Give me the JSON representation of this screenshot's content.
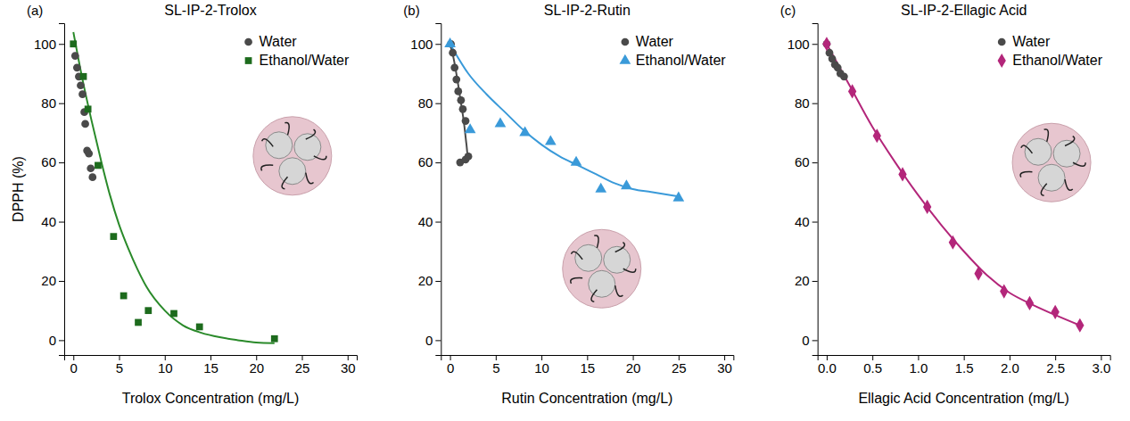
{
  "chart_data": [
    {
      "type": "scatter",
      "title": "SL-IP-2-Trolox",
      "panel_label": "(a)",
      "x_label": "Trolox Concentration (mg/L)",
      "y_label": "DPPH (%)",
      "xlim": [
        -1,
        31
      ],
      "xticks": [
        0,
        5,
        10,
        15,
        20,
        25,
        30
      ],
      "ylim": [
        -5,
        107
      ],
      "yticks": [
        0,
        20,
        40,
        60,
        80,
        100
      ],
      "grid": false,
      "legend": "top-right",
      "series": [
        {
          "name": "Water",
          "color": "#4a4a4a",
          "marker": "circle",
          "x": [
            0.2,
            0.4,
            0.6,
            0.8,
            1.0,
            1.2,
            1.3,
            1.5,
            1.7,
            1.9,
            2.1
          ],
          "values": [
            96,
            92,
            89,
            86,
            83,
            77,
            73,
            64,
            63,
            58,
            55
          ]
        },
        {
          "name": "Ethanol/Water",
          "color": "#1d6b1d",
          "marker": "square",
          "x": [
            0,
            1.1,
            1.6,
            2.7,
            4.4,
            5.5,
            7.1,
            8.2,
            11,
            13.8,
            22
          ],
          "values": [
            100,
            89,
            78,
            59,
            35,
            15,
            6,
            10,
            9,
            4.5,
            0.5
          ]
        },
        {
          "type": "line",
          "color": "#2a8a2a",
          "line_style": "solid",
          "x": [
            0,
            1,
            2,
            3,
            4,
            5,
            6,
            7,
            8,
            10,
            12,
            14,
            16,
            18,
            20,
            22
          ],
          "values": [
            104,
            88,
            74,
            61,
            49,
            39,
            31,
            24,
            18,
            10,
            5,
            2.5,
            1,
            0,
            -0.8,
            -1
          ]
        }
      ]
    },
    {
      "type": "scatter",
      "title": "SL-IP-2-Rutin",
      "panel_label": "(b)",
      "x_label": "Rutin Concentration (mg/L)",
      "xlim": [
        -1,
        31
      ],
      "xticks": [
        0,
        5,
        10,
        15,
        20,
        25,
        30
      ],
      "ylim": [
        -5,
        107
      ],
      "yticks": [
        0,
        20,
        40,
        60,
        80,
        100
      ],
      "grid": false,
      "legend": "top-right",
      "series": [
        {
          "name": "Water",
          "color": "#4a4a4a",
          "marker": "circle",
          "x": [
            0.1,
            0.3,
            0.5,
            0.7,
            0.9,
            1.2,
            1.4,
            1.7,
            1.1,
            1.7,
            2.0
          ],
          "values": [
            100,
            97,
            92,
            88,
            84,
            81,
            78,
            74,
            60,
            61,
            62
          ]
        },
        {
          "name": "Ethanol/Water",
          "color": "#3a9ad9",
          "marker": "triangle",
          "x": [
            0,
            2.2,
            5.5,
            8.2,
            11,
            13.8,
            16.5,
            19.3,
            25
          ],
          "values": [
            100,
            71,
            73,
            70,
            67,
            60,
            51,
            52,
            48
          ]
        },
        {
          "type": "line",
          "color": "#4a4a4a",
          "line_style": "solid",
          "x": [
            0,
            0.4,
            0.8,
            1.2,
            1.5,
            1.8,
            2.0,
            2.1
          ],
          "values": [
            100,
            95,
            88,
            80,
            74,
            66,
            61,
            62
          ]
        },
        {
          "type": "line",
          "color": "#3a9ad9",
          "line_style": "solid",
          "x": [
            0,
            2,
            4,
            6,
            8,
            10,
            12,
            14,
            16,
            18,
            20,
            22,
            25
          ],
          "values": [
            100,
            90,
            83,
            77,
            71,
            66,
            62,
            59,
            56,
            53,
            51,
            50,
            48.5
          ]
        }
      ]
    },
    {
      "type": "scatter",
      "title": "SL-IP-2-Ellagic Acid",
      "panel_label": "(c)",
      "x_label": "Ellagic Acid Concentration (mg/L)",
      "xlim": [
        -0.1,
        3.1
      ],
      "xticks": [
        {
          "value": 0,
          "label": "0.0"
        },
        {
          "value": 0.5,
          "label": "0.5"
        },
        {
          "value": 1,
          "label": "1.0"
        },
        {
          "value": 1.5,
          "label": "1.5"
        },
        {
          "value": 2,
          "label": "2.0"
        },
        {
          "value": 2.5,
          "label": "2.5"
        },
        {
          "value": 3,
          "label": "3.0"
        }
      ],
      "ylim": [
        -5,
        107
      ],
      "yticks": [
        0,
        20,
        40,
        60,
        80,
        100
      ],
      "grid": false,
      "legend": "top-right",
      "series": [
        {
          "name": "Water",
          "color": "#4a4a4a",
          "marker": "circle",
          "x": [
            0,
            0.03,
            0.06,
            0.09,
            0.12,
            0.15,
            0.19
          ],
          "values": [
            100,
            97,
            95,
            93,
            92,
            90,
            89
          ]
        },
        {
          "name": "Ethanol/Water",
          "color": "#b3267a",
          "marker": "diamond",
          "x": [
            0,
            0.28,
            0.55,
            0.83,
            1.1,
            1.38,
            1.66,
            1.94,
            2.22,
            2.5,
            2.77
          ],
          "values": [
            100,
            84,
            69,
            56,
            45,
            33,
            22.5,
            16.5,
            12.5,
            9.5,
            5
          ]
        },
        {
          "type": "line",
          "color": "#b3267a",
          "line_style": "solid",
          "x": [
            0,
            0.25,
            0.5,
            0.75,
            1,
            1.25,
            1.5,
            1.75,
            2,
            2.25,
            2.5,
            2.77
          ],
          "values": [
            100,
            86,
            72,
            60,
            49,
            39,
            30,
            22,
            16,
            12,
            8.5,
            5
          ]
        }
      ]
    }
  ]
}
